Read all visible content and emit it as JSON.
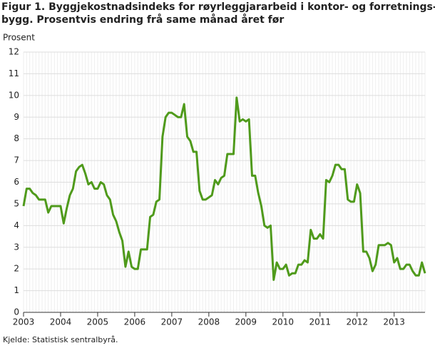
{
  "chart_data": {
    "type": "line",
    "title": [
      "Figur 1. Byggjekostnadsindeks for røyrleggjararbeid i kontor- og forretnings-",
      "bygg. Prosentvis endring frå same månad året før"
    ],
    "y_label": "Prosent",
    "source": "Kjelde: Statistisk sentralbyrå.",
    "categories": [
      "2003",
      null,
      null,
      null,
      null,
      null,
      null,
      null,
      null,
      null,
      null,
      null,
      "2004",
      null,
      null,
      null,
      null,
      null,
      null,
      null,
      null,
      null,
      null,
      null,
      "2005",
      null,
      null,
      null,
      null,
      null,
      null,
      null,
      null,
      null,
      null,
      null,
      "2006",
      null,
      null,
      null,
      null,
      null,
      null,
      null,
      null,
      null,
      null,
      null,
      "2007",
      null,
      null,
      null,
      null,
      null,
      null,
      null,
      null,
      null,
      null,
      null,
      "2008",
      null,
      null,
      null,
      null,
      null,
      null,
      null,
      null,
      null,
      null,
      null,
      "2009",
      null,
      null,
      null,
      null,
      null,
      null,
      null,
      null,
      null,
      null,
      null,
      "2010",
      null,
      null,
      null,
      null,
      null,
      null,
      null,
      null,
      null,
      null,
      null,
      "2011",
      null,
      null,
      null,
      null,
      null,
      null,
      null,
      null,
      null,
      null,
      null,
      "2012",
      null,
      null,
      null,
      null,
      null,
      null,
      null,
      null,
      null,
      null,
      null,
      "2013",
      null,
      null,
      null,
      null,
      null,
      null,
      null,
      null,
      null,
      null
    ],
    "values": [
      4.9,
      5.7,
      5.7,
      5.5,
      5.4,
      5.2,
      5.2,
      5.2,
      4.6,
      4.9,
      4.9,
      4.9,
      4.9,
      4.1,
      4.8,
      5.4,
      5.7,
      6.5,
      6.7,
      6.8,
      6.4,
      5.9,
      6.0,
      5.7,
      5.7,
      6.0,
      5.9,
      5.4,
      5.2,
      4.5,
      4.2,
      3.7,
      3.3,
      2.1,
      2.8,
      2.1,
      2.0,
      2.0,
      2.9,
      2.9,
      2.9,
      4.4,
      4.5,
      5.1,
      5.2,
      8.1,
      9.0,
      9.2,
      9.2,
      9.1,
      9.0,
      9.0,
      9.6,
      8.1,
      7.9,
      7.4,
      7.4,
      5.6,
      5.2,
      5.2,
      5.3,
      5.4,
      6.1,
      5.9,
      6.2,
      6.3,
      7.3,
      7.3,
      7.3,
      9.9,
      8.8,
      8.9,
      8.8,
      8.9,
      6.3,
      6.3,
      5.5,
      4.9,
      4.0,
      3.9,
      4.0,
      1.5,
      2.3,
      2.0,
      2.0,
      2.2,
      1.7,
      1.8,
      1.8,
      2.2,
      2.2,
      2.4,
      2.3,
      3.8,
      3.4,
      3.4,
      3.6,
      3.4,
      6.1,
      6.0,
      6.3,
      6.8,
      6.8,
      6.6,
      6.6,
      5.2,
      5.1,
      5.1,
      5.9,
      5.5,
      2.8,
      2.8,
      2.5,
      1.9,
      2.2,
      3.1,
      3.1,
      3.1,
      3.2,
      3.1,
      2.3,
      2.5,
      2.0,
      2.0,
      2.2,
      2.2,
      1.9,
      1.7,
      1.7,
      2.3,
      1.8
    ],
    "color": "#4f9a1b",
    "ylim": [
      0,
      12
    ],
    "yticks": [
      0,
      1,
      2,
      3,
      4,
      5,
      6,
      7,
      8,
      9,
      10,
      11,
      12
    ],
    "grid": true
  }
}
